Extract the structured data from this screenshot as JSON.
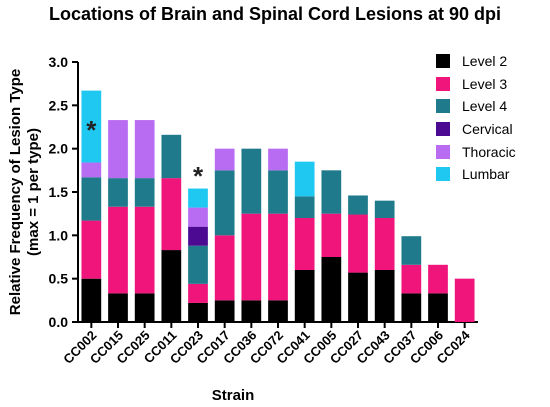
{
  "chart_data": {
    "type": "bar",
    "stacked": true,
    "title": "Locations of Brain and Spinal Cord Lesions at 90 dpi",
    "xlabel": "Strain",
    "ylabel_line1": "Relative Frequency of Lesion Type",
    "ylabel_line2": "(max = 1 per type)",
    "ylim": [
      0,
      3.0
    ],
    "yticks": [
      "0.0",
      "0.5",
      "1.0",
      "1.5",
      "2.0",
      "2.5",
      "3.0"
    ],
    "grid": false,
    "legend_position": "top-right",
    "categories": [
      "CC002",
      "CC015",
      "CC025",
      "CC011",
      "CC023",
      "CC017",
      "CC036",
      "CC072",
      "CC041",
      "CC005",
      "CC027",
      "CC043",
      "CC037",
      "CC006",
      "CC024"
    ],
    "series": [
      {
        "name": "Level 2",
        "color": "#000000",
        "values": [
          0.5,
          0.33,
          0.33,
          0.83,
          0.22,
          0.25,
          0.25,
          0.25,
          0.6,
          0.75,
          0.57,
          0.6,
          0.33,
          0.33,
          0.0
        ]
      },
      {
        "name": "Level 3",
        "color": "#f0157a",
        "values": [
          0.67,
          1.0,
          1.0,
          0.83,
          0.22,
          0.75,
          1.0,
          1.0,
          0.6,
          0.5,
          0.67,
          0.6,
          0.33,
          0.33,
          0.5
        ]
      },
      {
        "name": "Level 4",
        "color": "#1f7a8c",
        "values": [
          0.5,
          0.33,
          0.33,
          0.5,
          0.44,
          0.75,
          0.75,
          0.5,
          0.25,
          0.5,
          0.22,
          0.2,
          0.33,
          0.0,
          0.0
        ]
      },
      {
        "name": "Cervical",
        "color": "#4b0a91",
        "values": [
          0.0,
          0.0,
          0.0,
          0.0,
          0.22,
          0.0,
          0.0,
          0.0,
          0.0,
          0.0,
          0.0,
          0.0,
          0.0,
          0.0,
          0.0
        ]
      },
      {
        "name": "Thoracic",
        "color": "#b86cf2",
        "values": [
          0.17,
          0.67,
          0.67,
          0.0,
          0.22,
          0.25,
          0.0,
          0.25,
          0.0,
          0.0,
          0.0,
          0.0,
          0.0,
          0.0,
          0.0
        ]
      },
      {
        "name": "Lumbar",
        "color": "#1ec8f0",
        "values": [
          0.83,
          0.0,
          0.0,
          0.0,
          0.22,
          0.0,
          0.0,
          0.0,
          0.4,
          0.0,
          0.0,
          0.0,
          0.0,
          0.0,
          0.0
        ]
      }
    ],
    "annotations": [
      {
        "text": "*",
        "category": "CC002",
        "y": 2.25
      },
      {
        "text": "*",
        "category": "CC023",
        "y": 1.72
      }
    ]
  }
}
